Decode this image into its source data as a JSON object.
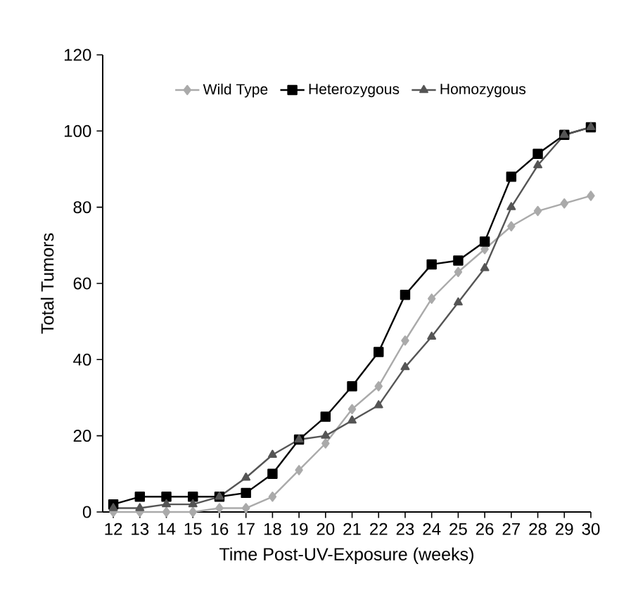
{
  "chart_data": {
    "type": "line",
    "xlabel": "Time Post-UV-Exposure (weeks)",
    "ylabel": "Total Tumors",
    "x": [
      12,
      13,
      14,
      15,
      16,
      17,
      18,
      19,
      20,
      21,
      22,
      23,
      24,
      25,
      26,
      27,
      28,
      29,
      30
    ],
    "xlim": [
      11.6,
      30
    ],
    "xticks": [
      12,
      13,
      14,
      15,
      16,
      17,
      18,
      19,
      20,
      21,
      22,
      23,
      24,
      25,
      26,
      27,
      28,
      29,
      30
    ],
    "ylim": [
      0,
      120
    ],
    "yticks": [
      0,
      20,
      40,
      60,
      80,
      100,
      120
    ],
    "legend": "top",
    "grid": false,
    "series": [
      {
        "name": "Wild Type",
        "color": "#aaaaaa",
        "marker": "diamond",
        "values": [
          0,
          0,
          0,
          0,
          1,
          1,
          4,
          11,
          18,
          27,
          33,
          45,
          56,
          63,
          69,
          75,
          79,
          81,
          83
        ]
      },
      {
        "name": "Heterozygous",
        "color": "#000000",
        "marker": "square",
        "values": [
          2,
          4,
          4,
          4,
          4,
          5,
          10,
          19,
          25,
          33,
          42,
          57,
          65,
          66,
          71,
          88,
          94,
          99,
          101
        ]
      },
      {
        "name": "Homozygous",
        "color": "#555555",
        "marker": "triangle",
        "values": [
          1,
          1,
          2,
          2,
          4,
          9,
          15,
          19,
          20,
          24,
          28,
          38,
          46,
          55,
          64,
          80,
          91,
          99,
          101
        ]
      }
    ]
  }
}
